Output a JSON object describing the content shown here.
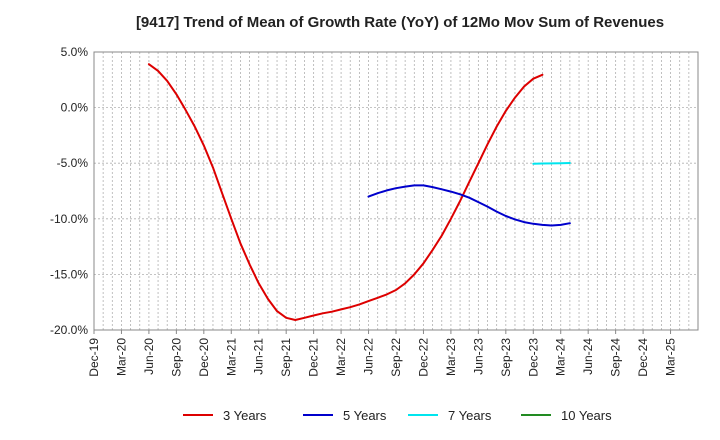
{
  "chart_data": {
    "type": "line",
    "title": "[9417]  Trend of Mean of Growth Rate (YoY) of 12Mo Mov Sum of Revenues",
    "xlabel": "",
    "ylabel": "",
    "ylim": [
      -20,
      5
    ],
    "yticks": [
      5,
      0,
      -5,
      -10,
      -15,
      -20
    ],
    "ytick_labels": [
      "5.0%",
      "0.0%",
      "-5.0%",
      "-10.0%",
      "-15.0%",
      "-20.0%"
    ],
    "x_range_months": [
      0,
      66
    ],
    "xtick_labels": [
      "Dec-19",
      "Mar-20",
      "Jun-20",
      "Sep-20",
      "Dec-20",
      "Mar-21",
      "Jun-21",
      "Sep-21",
      "Dec-21",
      "Mar-22",
      "Jun-22",
      "Sep-22",
      "Dec-22",
      "Mar-23",
      "Jun-23",
      "Sep-23",
      "Dec-23",
      "Mar-24",
      "Jun-24",
      "Sep-24",
      "Dec-24",
      "Mar-25"
    ],
    "grid": true,
    "legend_position": "bottom",
    "series": [
      {
        "name": "3 Years",
        "color": "#dd0000",
        "points": [
          [
            6,
            3.9
          ],
          [
            7,
            3.3
          ],
          [
            8,
            2.4
          ],
          [
            9,
            1.2
          ],
          [
            10,
            -0.2
          ],
          [
            11,
            -1.7
          ],
          [
            12,
            -3.4
          ],
          [
            13,
            -5.4
          ],
          [
            14,
            -7.7
          ],
          [
            15,
            -10.0
          ],
          [
            16,
            -12.2
          ],
          [
            17,
            -14.1
          ],
          [
            18,
            -15.8
          ],
          [
            19,
            -17.2
          ],
          [
            20,
            -18.3
          ],
          [
            21,
            -18.9
          ],
          [
            22,
            -19.1
          ],
          [
            23,
            -18.9
          ],
          [
            24,
            -18.7
          ],
          [
            25,
            -18.5
          ],
          [
            26,
            -18.35
          ],
          [
            27,
            -18.15
          ],
          [
            28,
            -17.95
          ],
          [
            29,
            -17.7
          ],
          [
            30,
            -17.4
          ],
          [
            31,
            -17.1
          ],
          [
            32,
            -16.8
          ],
          [
            33,
            -16.4
          ],
          [
            34,
            -15.8
          ],
          [
            35,
            -15.0
          ],
          [
            36,
            -14.0
          ],
          [
            37,
            -12.8
          ],
          [
            38,
            -11.5
          ],
          [
            39,
            -10.0
          ],
          [
            40,
            -8.4
          ],
          [
            41,
            -6.7
          ],
          [
            42,
            -5.0
          ],
          [
            43,
            -3.3
          ],
          [
            44,
            -1.7
          ],
          [
            45,
            -0.3
          ],
          [
            46,
            0.9
          ],
          [
            47,
            1.9
          ],
          [
            48,
            2.6
          ],
          [
            49,
            2.95
          ]
        ]
      },
      {
        "name": "5 Years",
        "color": "#0000cc",
        "points": [
          [
            30,
            -8.0
          ],
          [
            31,
            -7.7
          ],
          [
            32,
            -7.45
          ],
          [
            33,
            -7.25
          ],
          [
            34,
            -7.1
          ],
          [
            35,
            -7.0
          ],
          [
            36,
            -7.0
          ],
          [
            37,
            -7.15
          ],
          [
            38,
            -7.35
          ],
          [
            39,
            -7.55
          ],
          [
            40,
            -7.8
          ],
          [
            41,
            -8.1
          ],
          [
            42,
            -8.5
          ],
          [
            43,
            -8.9
          ],
          [
            44,
            -9.35
          ],
          [
            45,
            -9.75
          ],
          [
            46,
            -10.05
          ],
          [
            47,
            -10.3
          ],
          [
            48,
            -10.45
          ],
          [
            49,
            -10.55
          ],
          [
            50,
            -10.6
          ],
          [
            51,
            -10.55
          ],
          [
            52,
            -10.4
          ]
        ]
      },
      {
        "name": "7 Years",
        "color": "#00e5ee",
        "points": [
          [
            48,
            -5.05
          ],
          [
            49,
            -5.03
          ],
          [
            50,
            -5.02
          ],
          [
            51,
            -5.0
          ],
          [
            52,
            -4.98
          ]
        ]
      },
      {
        "name": "10 Years",
        "color": "#228b22",
        "points": []
      }
    ]
  }
}
